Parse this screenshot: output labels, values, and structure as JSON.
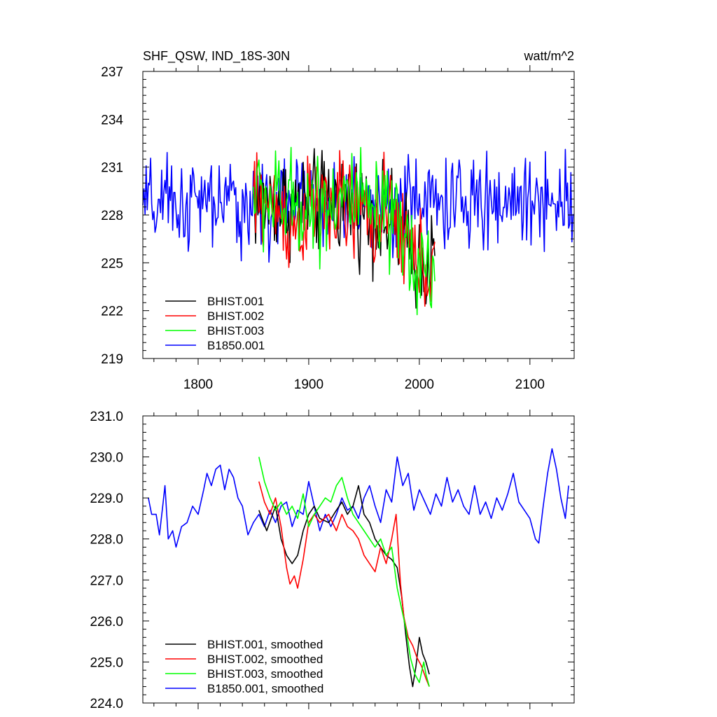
{
  "chart_data": [
    {
      "type": "line",
      "title": "SHF_QSW, IND_18S-30N",
      "units": "watt/m^2",
      "xlim": [
        1750,
        2140
      ],
      "ylim": [
        219,
        237
      ],
      "x_ticks": [
        1800,
        1900,
        2000,
        2100
      ],
      "y_ticks": [
        219,
        222,
        225,
        228,
        231,
        234,
        237
      ],
      "y_tick_labels": [
        "219",
        "222",
        "225",
        "228",
        "231",
        "234",
        "237"
      ],
      "grid": false,
      "legend_position": "bottom-left",
      "series": [
        {
          "name": "BHIST.001",
          "color": "#000000",
          "x_start": 1850,
          "x_end": 2014,
          "baseline": [
            [
              1850,
              228.8
            ],
            [
              1900,
              228.6
            ],
            [
              1930,
              228.9
            ],
            [
              1960,
              228.0
            ],
            [
              1980,
              227.0
            ],
            [
              1990,
              226.0
            ],
            [
              2000,
              225.0
            ],
            [
              2014,
              225.0
            ]
          ],
          "amplitude": 2.4
        },
        {
          "name": "BHIST.002",
          "color": "#ff0000",
          "x_start": 1850,
          "x_end": 2014,
          "baseline": [
            [
              1850,
              228.9
            ],
            [
              1875,
              228.4
            ],
            [
              1885,
              227.0
            ],
            [
              1900,
              228.3
            ],
            [
              1930,
              228.5
            ],
            [
              1960,
              227.8
            ],
            [
              1980,
              227.5
            ],
            [
              1990,
              226.0
            ],
            [
              2000,
              225.0
            ],
            [
              2014,
              224.8
            ]
          ],
          "amplitude": 2.5
        },
        {
          "name": "BHIST.003",
          "color": "#00ff00",
          "x_start": 1850,
          "x_end": 2014,
          "baseline": [
            [
              1850,
              229.5
            ],
            [
              1870,
              228.7
            ],
            [
              1900,
              228.6
            ],
            [
              1930,
              229.2
            ],
            [
              1960,
              228.0
            ],
            [
              1980,
              227.0
            ],
            [
              1990,
              225.8
            ],
            [
              2000,
              225.0
            ],
            [
              2014,
              224.5
            ]
          ],
          "amplitude": 2.5
        },
        {
          "name": "B1850.001",
          "color": "#0000ff",
          "x_start": 1750,
          "x_end": 2139,
          "baseline": [
            [
              1750,
              228.5
            ],
            [
              1800,
              228.7
            ],
            [
              1850,
              228.6
            ],
            [
              1900,
              228.7
            ],
            [
              1950,
              228.8
            ],
            [
              2000,
              228.9
            ],
            [
              2050,
              228.6
            ],
            [
              2100,
              229.0
            ],
            [
              2139,
              229.1
            ]
          ],
          "amplitude": 2.2
        }
      ]
    },
    {
      "type": "line",
      "title": "",
      "xlim": [
        1750,
        2140
      ],
      "ylim": [
        224.0,
        231.0
      ],
      "x_ticks": [
        1800,
        1900,
        2000,
        2100
      ],
      "y_ticks": [
        224.0,
        225.0,
        226.0,
        227.0,
        228.0,
        229.0,
        230.0,
        231.0
      ],
      "y_tick_labels": [
        "224.0",
        "225.0",
        "226.0",
        "227.0",
        "228.0",
        "229.0",
        "230.0",
        "231.0"
      ],
      "grid": false,
      "legend_position": "bottom-left",
      "series": [
        {
          "name": "BHIST.001, smoothed",
          "color": "#000000",
          "x_start": 1855,
          "x_end": 2009,
          "points": [
            [
              1855,
              228.7
            ],
            [
              1862,
              228.2
            ],
            [
              1870,
              228.8
            ],
            [
              1875,
              228.0
            ],
            [
              1880,
              227.6
            ],
            [
              1885,
              227.4
            ],
            [
              1890,
              227.6
            ],
            [
              1895,
              228.2
            ],
            [
              1900,
              228.6
            ],
            [
              1905,
              228.8
            ],
            [
              1910,
              228.5
            ],
            [
              1918,
              228.4
            ],
            [
              1925,
              228.7
            ],
            [
              1930,
              228.9
            ],
            [
              1935,
              228.6
            ],
            [
              1940,
              228.8
            ],
            [
              1945,
              229.3
            ],
            [
              1950,
              228.6
            ],
            [
              1955,
              228.4
            ],
            [
              1960,
              228.0
            ],
            [
              1965,
              227.8
            ],
            [
              1970,
              227.6
            ],
            [
              1975,
              227.5
            ],
            [
              1980,
              227.3
            ],
            [
              1984,
              226.6
            ],
            [
              1988,
              225.6
            ],
            [
              1991,
              224.9
            ],
            [
              1994,
              224.4
            ],
            [
              1997,
              224.9
            ],
            [
              2000,
              225.6
            ],
            [
              2003,
              225.2
            ],
            [
              2006,
              225.0
            ],
            [
              2009,
              224.7
            ]
          ]
        },
        {
          "name": "BHIST.002, smoothed",
          "color": "#ff0000",
          "x_start": 1855,
          "x_end": 2009,
          "points": [
            [
              1855,
              229.4
            ],
            [
              1860,
              228.9
            ],
            [
              1865,
              228.6
            ],
            [
              1870,
              229.0
            ],
            [
              1875,
              228.3
            ],
            [
              1880,
              227.3
            ],
            [
              1883,
              226.9
            ],
            [
              1887,
              227.1
            ],
            [
              1890,
              226.8
            ],
            [
              1895,
              227.5
            ],
            [
              1900,
              228.4
            ],
            [
              1905,
              228.6
            ],
            [
              1910,
              228.4
            ],
            [
              1918,
              228.6
            ],
            [
              1925,
              228.2
            ],
            [
              1930,
              228.6
            ],
            [
              1935,
              228.3
            ],
            [
              1940,
              228.2
            ],
            [
              1945,
              228.0
            ],
            [
              1950,
              227.6
            ],
            [
              1955,
              227.4
            ],
            [
              1960,
              227.2
            ],
            [
              1965,
              227.8
            ],
            [
              1970,
              227.4
            ],
            [
              1975,
              228.0
            ],
            [
              1979,
              228.6
            ],
            [
              1983,
              226.9
            ],
            [
              1986,
              226.1
            ],
            [
              1990,
              225.6
            ],
            [
              1994,
              225.4
            ],
            [
              1998,
              225.1
            ],
            [
              2002,
              224.9
            ],
            [
              2006,
              224.6
            ],
            [
              2009,
              224.4
            ]
          ]
        },
        {
          "name": "BHIST.003, smoothed",
          "color": "#00ff00",
          "x_start": 1855,
          "x_end": 2009,
          "points": [
            [
              1855,
              230.0
            ],
            [
              1860,
              229.4
            ],
            [
              1865,
              229.0
            ],
            [
              1870,
              228.7
            ],
            [
              1875,
              228.9
            ],
            [
              1880,
              228.6
            ],
            [
              1885,
              228.8
            ],
            [
              1890,
              228.5
            ],
            [
              1895,
              229.1
            ],
            [
              1900,
              228.3
            ],
            [
              1905,
              228.6
            ],
            [
              1910,
              228.8
            ],
            [
              1915,
              229.0
            ],
            [
              1920,
              228.9
            ],
            [
              1925,
              229.3
            ],
            [
              1930,
              229.5
            ],
            [
              1935,
              229.0
            ],
            [
              1940,
              228.6
            ],
            [
              1945,
              228.4
            ],
            [
              1950,
              228.2
            ],
            [
              1955,
              228.0
            ],
            [
              1960,
              227.8
            ],
            [
              1965,
              228.0
            ],
            [
              1970,
              227.6
            ],
            [
              1975,
              227.8
            ],
            [
              1980,
              226.8
            ],
            [
              1984,
              226.3
            ],
            [
              1988,
              225.8
            ],
            [
              1992,
              225.1
            ],
            [
              1996,
              224.7
            ],
            [
              2000,
              224.5
            ],
            [
              2004,
              225.0
            ],
            [
              2006,
              224.7
            ],
            [
              2009,
              224.4
            ]
          ]
        },
        {
          "name": "B1850.001, smoothed",
          "color": "#0000ff",
          "x_start": 1755,
          "x_end": 2135,
          "points": [
            [
              1755,
              229.0
            ],
            [
              1758,
              228.6
            ],
            [
              1762,
              228.6
            ],
            [
              1765,
              228.1
            ],
            [
              1768,
              228.8
            ],
            [
              1770,
              229.3
            ],
            [
              1773,
              228.0
            ],
            [
              1777,
              228.2
            ],
            [
              1780,
              227.8
            ],
            [
              1785,
              228.3
            ],
            [
              1790,
              228.4
            ],
            [
              1795,
              228.8
            ],
            [
              1800,
              228.6
            ],
            [
              1805,
              229.2
            ],
            [
              1808,
              229.6
            ],
            [
              1812,
              229.3
            ],
            [
              1816,
              229.7
            ],
            [
              1820,
              229.8
            ],
            [
              1824,
              229.2
            ],
            [
              1828,
              229.7
            ],
            [
              1832,
              229.5
            ],
            [
              1836,
              229.0
            ],
            [
              1840,
              228.8
            ],
            [
              1845,
              228.1
            ],
            [
              1850,
              228.4
            ],
            [
              1855,
              228.6
            ],
            [
              1860,
              228.3
            ],
            [
              1865,
              228.7
            ],
            [
              1870,
              228.4
            ],
            [
              1875,
              228.8
            ],
            [
              1880,
              228.9
            ],
            [
              1885,
              228.3
            ],
            [
              1890,
              228.7
            ],
            [
              1895,
              228.6
            ],
            [
              1900,
              229.4
            ],
            [
              1905,
              228.8
            ],
            [
              1910,
              228.2
            ],
            [
              1915,
              228.6
            ],
            [
              1920,
              228.3
            ],
            [
              1925,
              228.6
            ],
            [
              1930,
              229.0
            ],
            [
              1935,
              228.7
            ],
            [
              1940,
              228.8
            ],
            [
              1945,
              228.5
            ],
            [
              1950,
              229.0
            ],
            [
              1955,
              229.3
            ],
            [
              1960,
              228.8
            ],
            [
              1965,
              228.4
            ],
            [
              1970,
              229.2
            ],
            [
              1975,
              228.9
            ],
            [
              1980,
              230.0
            ],
            [
              1985,
              229.3
            ],
            [
              1990,
              229.6
            ],
            [
              1995,
              228.7
            ],
            [
              2000,
              229.2
            ],
            [
              2005,
              228.9
            ],
            [
              2010,
              228.6
            ],
            [
              2015,
              229.1
            ],
            [
              2020,
              228.8
            ],
            [
              2025,
              229.5
            ],
            [
              2030,
              228.9
            ],
            [
              2035,
              229.2
            ],
            [
              2040,
              228.8
            ],
            [
              2045,
              228.6
            ],
            [
              2050,
              229.3
            ],
            [
              2055,
              228.6
            ],
            [
              2060,
              228.9
            ],
            [
              2065,
              228.5
            ],
            [
              2070,
              229.0
            ],
            [
              2075,
              228.7
            ],
            [
              2080,
              229.1
            ],
            [
              2085,
              229.6
            ],
            [
              2090,
              228.9
            ],
            [
              2095,
              228.7
            ],
            [
              2100,
              228.5
            ],
            [
              2105,
              228.0
            ],
            [
              2108,
              227.9
            ],
            [
              2112,
              228.8
            ],
            [
              2116,
              229.6
            ],
            [
              2120,
              230.2
            ],
            [
              2124,
              229.7
            ],
            [
              2128,
              229.0
            ],
            [
              2132,
              228.5
            ],
            [
              2135,
              229.3
            ]
          ]
        }
      ]
    }
  ]
}
